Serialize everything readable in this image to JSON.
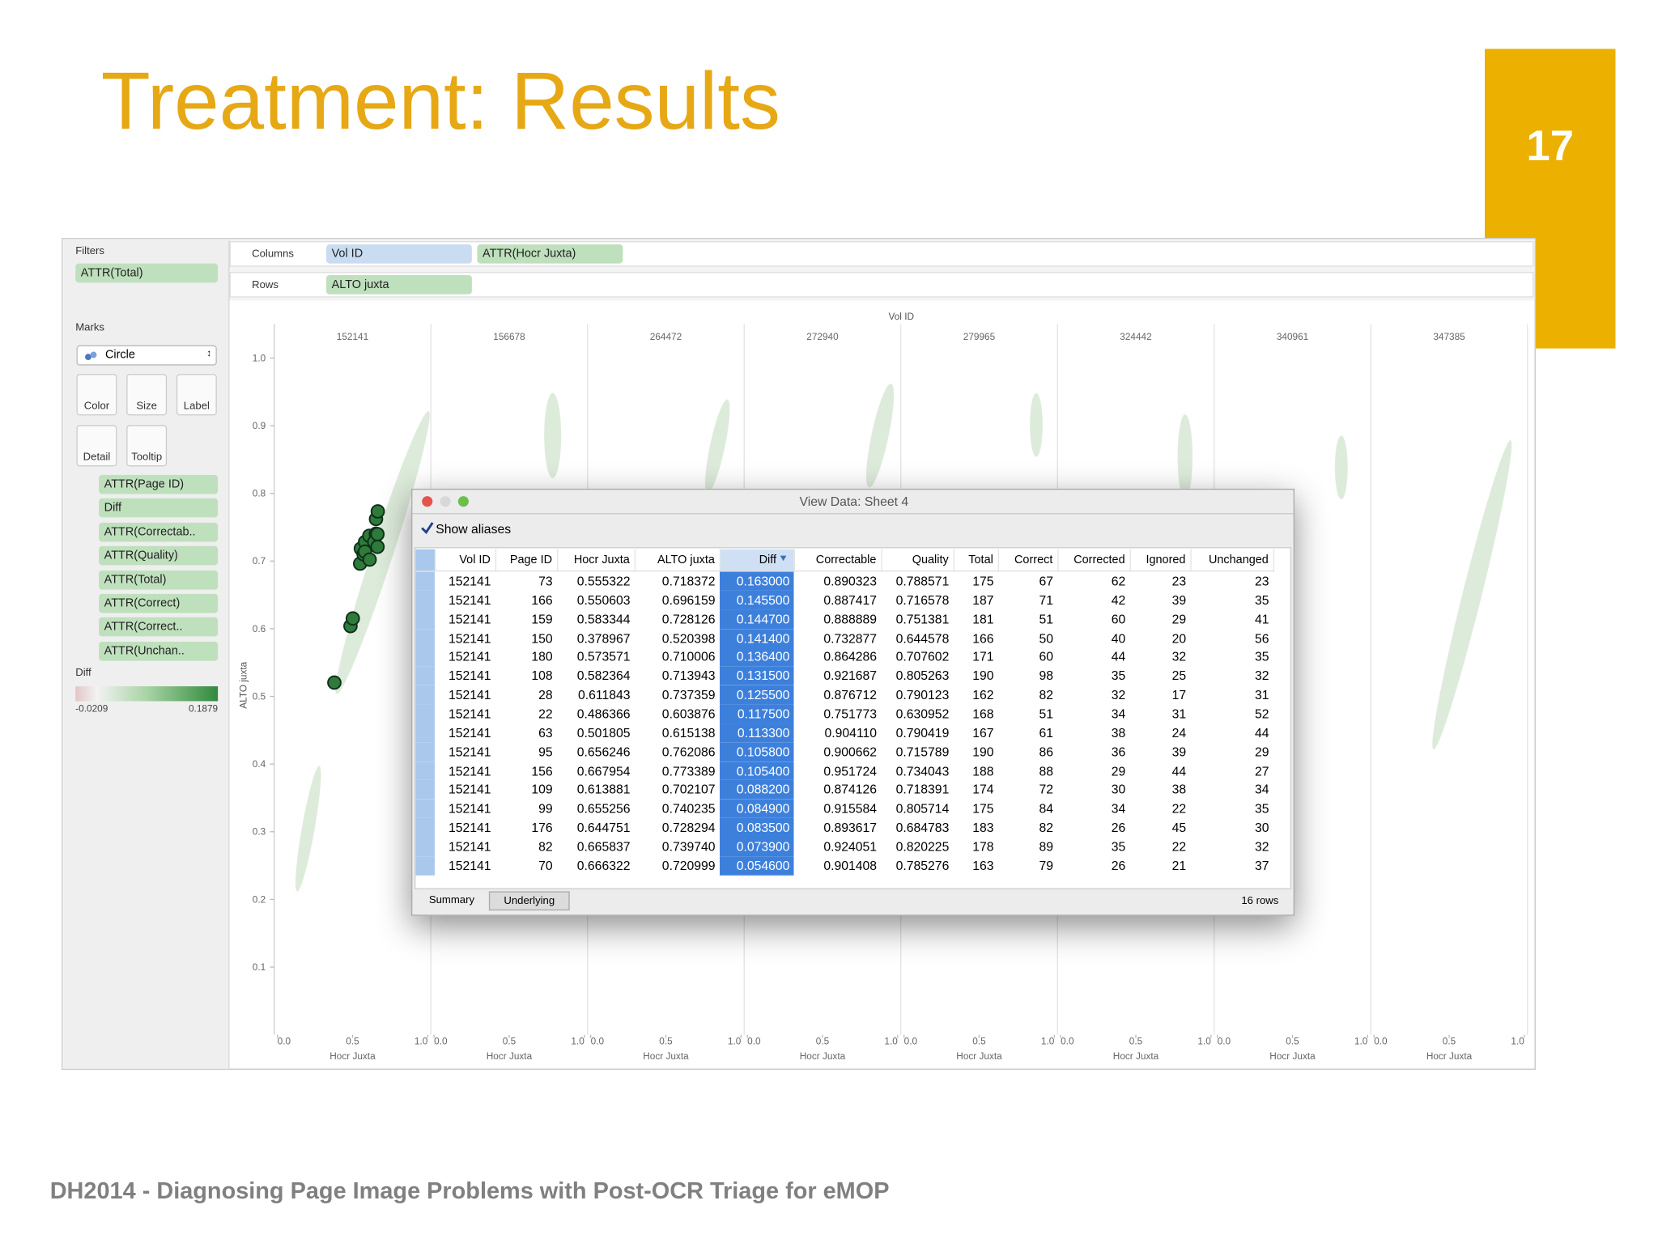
{
  "title": "Treatment: Results",
  "slide_number": "17",
  "footer": "DH2014 - Diagnosing Page Image Problems with Post-OCR Triage for eMOP",
  "sidebar": {
    "filters_label": "Filters",
    "filters": [
      "ATTR(Total)"
    ],
    "marks_label": "Marks",
    "mark_type": "Circle",
    "mark_buttons": [
      "Color",
      "Size",
      "Label",
      "Detail",
      "Tooltip"
    ],
    "mark_pills": [
      "ATTR(Page ID)",
      "Diff",
      "ATTR(Correctab..",
      "ATTR(Quality)",
      "ATTR(Total)",
      "ATTR(Correct)",
      "ATTR(Correct..",
      "ATTR(Unchan.."
    ],
    "legend_title": "Diff",
    "legend_min": "-0.0209",
    "legend_max": "0.1879"
  },
  "shelves": {
    "columns_label": "Columns",
    "columns": [
      "Vol ID",
      "ATTR(Hocr Juxta)"
    ],
    "rows_label": "Rows",
    "rows": [
      "ALTO juxta"
    ]
  },
  "chart_data": {
    "type": "scatter",
    "header": "Vol ID",
    "panels": [
      "152141",
      "156678",
      "264472",
      "272940",
      "279965",
      "324442",
      "340961",
      "347385"
    ],
    "xlabel": "Hocr Juxta",
    "ylabel": "ALTO juxta",
    "xlim": [
      0,
      1
    ],
    "xticks": [
      {
        "value": 0,
        "label": "0.0"
      },
      0.5,
      {
        "value": 1,
        "label": "1.0"
      }
    ],
    "ylim": [
      0,
      1
    ],
    "yticks": [
      0.1,
      0.2,
      0.3,
      0.4,
      0.5,
      0.6,
      0.7,
      0.8,
      0.9,
      {
        "value": 1,
        "label": "1.0"
      }
    ],
    "color": "#2f7b3c"
  },
  "dialog": {
    "title": "View Data: Sheet 4",
    "show_aliases": "Show aliases",
    "tabs": [
      "Summary",
      "Underlying"
    ],
    "row_count": "16 rows"
  },
  "table": {
    "columns": [
      "Vol ID",
      "Page ID",
      "Hocr Juxta",
      "ALTO juxta",
      "Diff",
      "Correctable",
      "Quality",
      "Total",
      "Correct",
      "Corrected",
      "Ignored",
      "Unchanged"
    ],
    "rows": [
      [
        "152141",
        "73",
        "0.555322",
        "0.718372",
        "0.163000",
        "0.890323",
        "0.788571",
        "175",
        "67",
        "62",
        "23",
        "23"
      ],
      [
        "152141",
        "166",
        "0.550603",
        "0.696159",
        "0.145500",
        "0.887417",
        "0.716578",
        "187",
        "71",
        "42",
        "39",
        "35"
      ],
      [
        "152141",
        "159",
        "0.583344",
        "0.728126",
        "0.144700",
        "0.888889",
        "0.751381",
        "181",
        "51",
        "60",
        "29",
        "41"
      ],
      [
        "152141",
        "150",
        "0.378967",
        "0.520398",
        "0.141400",
        "0.732877",
        "0.644578",
        "166",
        "50",
        "40",
        "20",
        "56"
      ],
      [
        "152141",
        "180",
        "0.573571",
        "0.710006",
        "0.136400",
        "0.864286",
        "0.707602",
        "171",
        "60",
        "44",
        "32",
        "35"
      ],
      [
        "152141",
        "108",
        "0.582364",
        "0.713943",
        "0.131500",
        "0.921687",
        "0.805263",
        "190",
        "98",
        "35",
        "25",
        "32"
      ],
      [
        "152141",
        "28",
        "0.611843",
        "0.737359",
        "0.125500",
        "0.876712",
        "0.790123",
        "162",
        "82",
        "32",
        "17",
        "31"
      ],
      [
        "152141",
        "22",
        "0.486366",
        "0.603876",
        "0.117500",
        "0.751773",
        "0.630952",
        "168",
        "51",
        "34",
        "31",
        "52"
      ],
      [
        "152141",
        "63",
        "0.501805",
        "0.615138",
        "0.113300",
        "0.904110",
        "0.790419",
        "167",
        "61",
        "38",
        "24",
        "44"
      ],
      [
        "152141",
        "95",
        "0.656246",
        "0.762086",
        "0.105800",
        "0.900662",
        "0.715789",
        "190",
        "86",
        "36",
        "39",
        "29"
      ],
      [
        "152141",
        "156",
        "0.667954",
        "0.773389",
        "0.105400",
        "0.951724",
        "0.734043",
        "188",
        "88",
        "29",
        "44",
        "27"
      ],
      [
        "152141",
        "109",
        "0.613881",
        "0.702107",
        "0.088200",
        "0.874126",
        "0.718391",
        "174",
        "72",
        "30",
        "38",
        "34"
      ],
      [
        "152141",
        "99",
        "0.655256",
        "0.740235",
        "0.084900",
        "0.915584",
        "0.805714",
        "175",
        "84",
        "34",
        "22",
        "35"
      ],
      [
        "152141",
        "176",
        "0.644751",
        "0.728294",
        "0.083500",
        "0.893617",
        "0.684783",
        "183",
        "82",
        "26",
        "45",
        "30"
      ],
      [
        "152141",
        "82",
        "0.665837",
        "0.739740",
        "0.073900",
        "0.924051",
        "0.820225",
        "178",
        "89",
        "35",
        "22",
        "32"
      ],
      [
        "152141",
        "70",
        "0.666322",
        "0.720999",
        "0.054600",
        "0.901408",
        "0.785276",
        "163",
        "79",
        "26",
        "21",
        "37"
      ]
    ]
  }
}
